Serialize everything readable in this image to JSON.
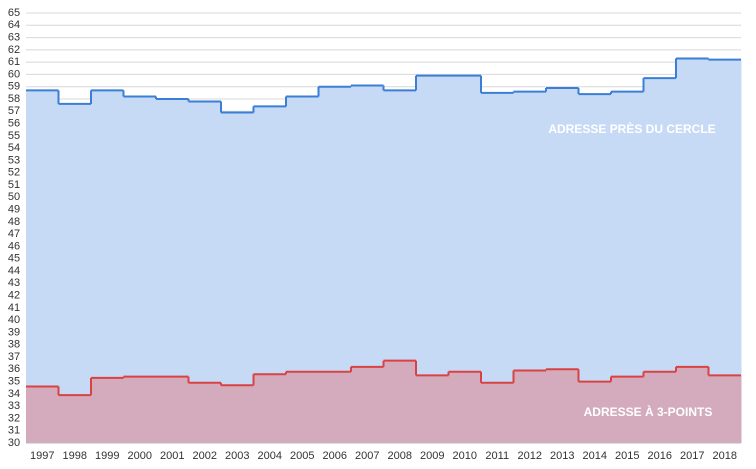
{
  "chart_data": {
    "type": "step-area",
    "categories": [
      "1997",
      "1998",
      "1999",
      "2000",
      "2001",
      "2002",
      "2003",
      "2004",
      "2005",
      "2006",
      "2007",
      "2008",
      "2009",
      "2010",
      "2011",
      "2012",
      "2013",
      "2014",
      "2015",
      "2016",
      "2017",
      "2018"
    ],
    "series": [
      {
        "name": "ADRESSE PRÈS DU CERCLE",
        "color": "#3a7fd5",
        "fill": "#c6daf6",
        "values": [
          58.7,
          57.6,
          58.7,
          58.2,
          58.0,
          57.8,
          56.9,
          57.4,
          58.2,
          59.0,
          59.1,
          58.7,
          59.9,
          59.9,
          58.5,
          58.6,
          58.9,
          58.4,
          58.6,
          59.7,
          61.3,
          61.2
        ]
      },
      {
        "name": "ADRESSE À 3-POINTS",
        "color": "#d94242",
        "fill": "#d4abbc",
        "values": [
          34.6,
          33.9,
          35.3,
          35.4,
          35.4,
          34.9,
          34.7,
          35.6,
          35.8,
          35.8,
          36.2,
          36.7,
          35.5,
          35.8,
          34.9,
          35.9,
          36.0,
          35.0,
          35.4,
          35.8,
          36.2,
          35.5
        ]
      }
    ],
    "ylim": [
      30,
      65
    ],
    "yticks": [
      30,
      31,
      32,
      33,
      34,
      35,
      36,
      37,
      38,
      39,
      40,
      41,
      42,
      43,
      44,
      45,
      46,
      47,
      48,
      49,
      50,
      51,
      52,
      53,
      54,
      55,
      56,
      57,
      58,
      59,
      60,
      61,
      62,
      63,
      64,
      65
    ],
    "grid": true
  }
}
